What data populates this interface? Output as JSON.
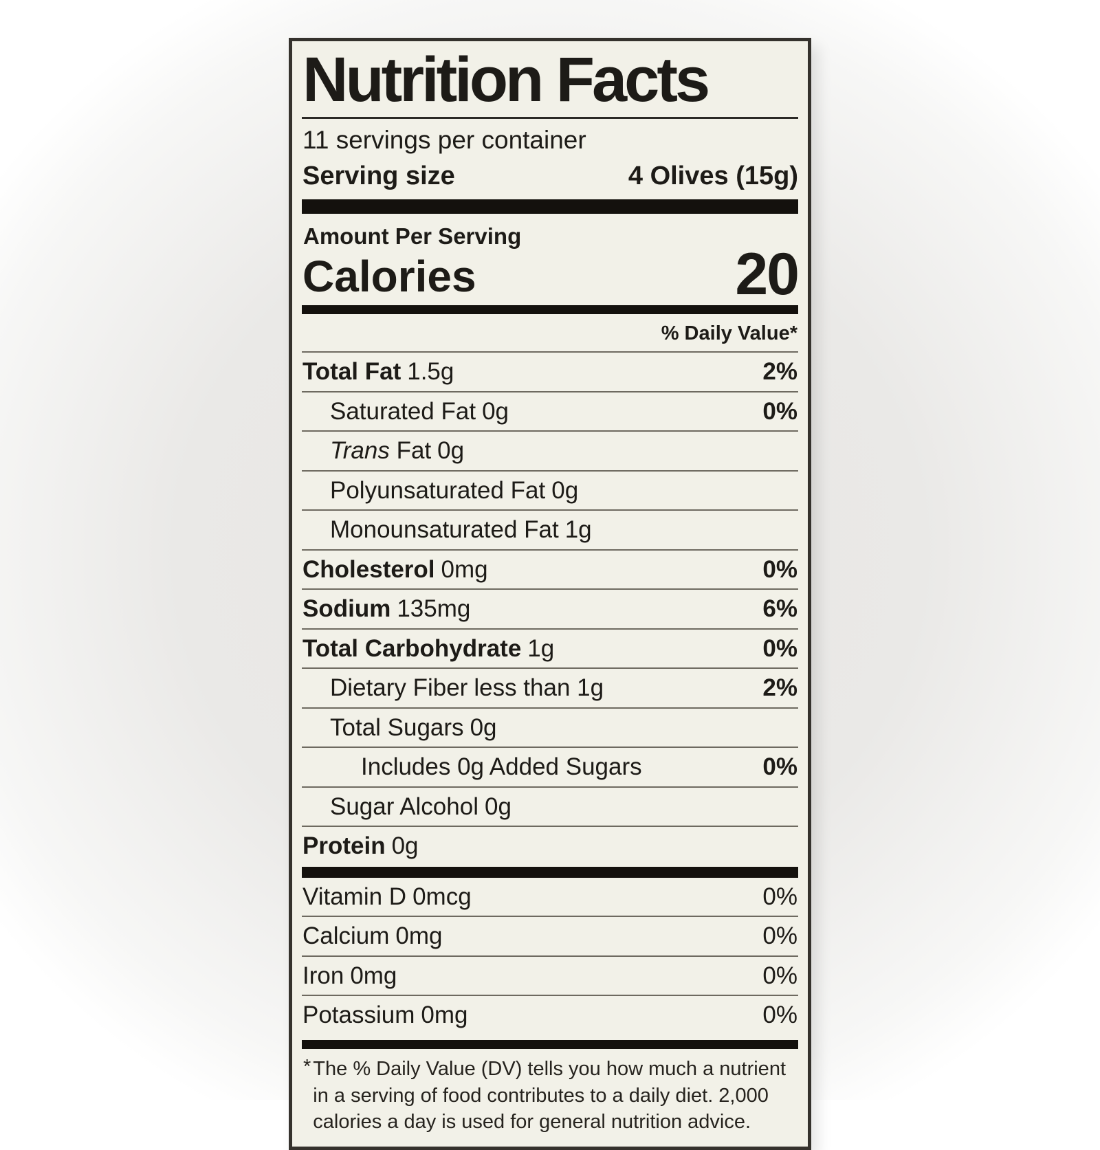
{
  "label": {
    "bg_color": "#f2f1e8",
    "text_color": "#1d1b17",
    "title": "Nutrition Facts",
    "servings_per_container": "11 servings per container",
    "serving_size": {
      "label": "Serving size",
      "value": "4 Olives (15g)"
    },
    "amount_per_serving": "Amount Per Serving",
    "calories": {
      "label": "Calories",
      "value": "20"
    },
    "daily_value_header": "% Daily Value*",
    "nutrient_rows": [
      {
        "name": "Total Fat",
        "amount": "1.5g",
        "dv": "2%",
        "bold": true,
        "indent": 0
      },
      {
        "name": "Saturated Fat",
        "amount": "0g",
        "dv": "0%",
        "indent": 1
      },
      {
        "italic_prefix": "Trans",
        "name": " Fat",
        "amount": "0g",
        "indent": 1
      },
      {
        "name": "Polyunsaturated Fat",
        "amount": "0g",
        "indent": 1
      },
      {
        "name": "Monounsaturated Fat",
        "amount": "1g",
        "indent": 1
      },
      {
        "name": "Cholesterol",
        "amount": "0mg",
        "dv": "0%",
        "bold": true,
        "indent": 0
      },
      {
        "name": "Sodium",
        "amount": "135mg",
        "dv": "6%",
        "bold": true,
        "indent": 0
      },
      {
        "name": "Total Carbohydrate",
        "amount": "1g",
        "dv": "0%",
        "bold": true,
        "indent": 0
      },
      {
        "name": "Dietary Fiber",
        "amount": "less than 1g",
        "dv": "2%",
        "indent": 1
      },
      {
        "name": "Total Sugars",
        "amount": "0g",
        "indent": 1
      },
      {
        "name": "Includes 0g Added Sugars",
        "dv": "0%",
        "indent": 2
      },
      {
        "name": "Sugar Alcohol",
        "amount": "0g",
        "indent": 1
      },
      {
        "name": "Protein",
        "amount": "0g",
        "bold": true,
        "indent": 0
      }
    ],
    "vitamin_rows": [
      {
        "name": "Vitamin D",
        "amount": "0mcg",
        "dv": "0%",
        "dv_bold": false
      },
      {
        "name": "Calcium",
        "amount": "0mg",
        "dv": "0%",
        "dv_bold": false
      },
      {
        "name": "Iron",
        "amount": "0mg",
        "dv": "0%",
        "dv_bold": false
      },
      {
        "name": "Potassium",
        "amount": "0mg",
        "dv": "0%",
        "dv_bold": false
      }
    ],
    "footnote_marker": "*",
    "footnote": "The % Daily Value (DV) tells you how much a nutrient in a serving of food contributes to a daily diet. 2,000 calories a day is used for general nutrition advice."
  }
}
